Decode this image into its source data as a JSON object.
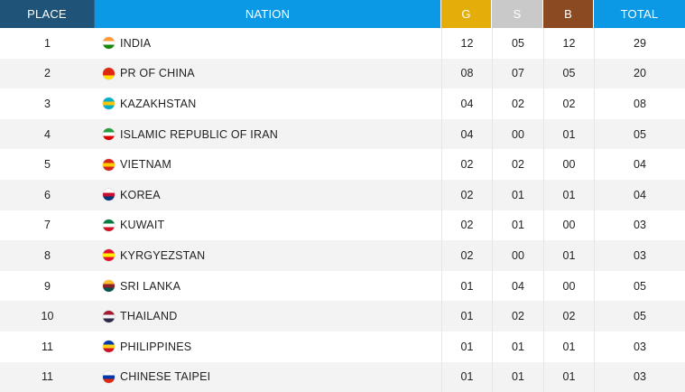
{
  "headers": {
    "place": "PLACE",
    "nation": "NATION",
    "gold": "G",
    "silver": "S",
    "bronze": "B",
    "total": "TOTAL"
  },
  "rows": [
    {
      "place": "1",
      "nation": "INDIA",
      "g": "12",
      "s": "05",
      "b": "12",
      "total": "29",
      "flag_icon": "india-flag-icon",
      "flag_colors": [
        "#ff9933",
        "#ffffff",
        "#138808"
      ]
    },
    {
      "place": "2",
      "nation": "PR OF CHINA",
      "g": "08",
      "s": "07",
      "b": "05",
      "total": "20",
      "flag_icon": "china-flag-icon",
      "flag_colors": [
        "#de2910",
        "#de2910",
        "#ffde00"
      ]
    },
    {
      "place": "3",
      "nation": "KAZAKHSTAN",
      "g": "04",
      "s": "02",
      "b": "02",
      "total": "08",
      "flag_icon": "kazakhstan-flag-icon",
      "flag_colors": [
        "#00afca",
        "#fec50c",
        "#00afca"
      ]
    },
    {
      "place": "4",
      "nation": "ISLAMIC REPUBLIC OF IRAN",
      "g": "04",
      "s": "00",
      "b": "01",
      "total": "05",
      "flag_icon": "iran-flag-icon",
      "flag_colors": [
        "#239f40",
        "#ffffff",
        "#da0000"
      ]
    },
    {
      "place": "5",
      "nation": "VIETNAM",
      "g": "02",
      "s": "02",
      "b": "00",
      "total": "04",
      "flag_icon": "vietnam-flag-icon",
      "flag_colors": [
        "#da251d",
        "#ffcd00",
        "#da251d"
      ]
    },
    {
      "place": "6",
      "nation": "KOREA",
      "g": "02",
      "s": "01",
      "b": "01",
      "total": "04",
      "flag_icon": "korea-flag-icon",
      "flag_colors": [
        "#ffffff",
        "#c60c30",
        "#003478"
      ]
    },
    {
      "place": "7",
      "nation": "KUWAIT",
      "g": "02",
      "s": "01",
      "b": "00",
      "total": "03",
      "flag_icon": "kuwait-flag-icon",
      "flag_colors": [
        "#007a3d",
        "#ffffff",
        "#ce1126"
      ]
    },
    {
      "place": "8",
      "nation": "KYRGYEZSTAN",
      "g": "02",
      "s": "00",
      "b": "01",
      "total": "03",
      "flag_icon": "kyrgyzstan-flag-icon",
      "flag_colors": [
        "#e8112d",
        "#ffef00",
        "#e8112d"
      ]
    },
    {
      "place": "9",
      "nation": "SRI LANKA",
      "g": "01",
      "s": "04",
      "b": "00",
      "total": "05",
      "flag_icon": "sri-lanka-flag-icon",
      "flag_colors": [
        "#ffbe29",
        "#8d2029",
        "#00534e"
      ]
    },
    {
      "place": "10",
      "nation": "THAILAND",
      "g": "01",
      "s": "02",
      "b": "02",
      "total": "05",
      "flag_icon": "thailand-flag-icon",
      "flag_colors": [
        "#a51931",
        "#f4f5f8",
        "#2d2a4a"
      ]
    },
    {
      "place": "11",
      "nation": "PHILIPPINES",
      "g": "01",
      "s": "01",
      "b": "01",
      "total": "03",
      "flag_icon": "philippines-flag-icon",
      "flag_colors": [
        "#0038a8",
        "#fcd116",
        "#ce1126"
      ]
    },
    {
      "place": "11",
      "nation": "CHINESE TAIPEI",
      "g": "01",
      "s": "01",
      "b": "01",
      "total": "03",
      "flag_icon": "chinese-taipei-flag-icon",
      "flag_colors": [
        "#ffffff",
        "#0038a8",
        "#de2910"
      ]
    }
  ]
}
